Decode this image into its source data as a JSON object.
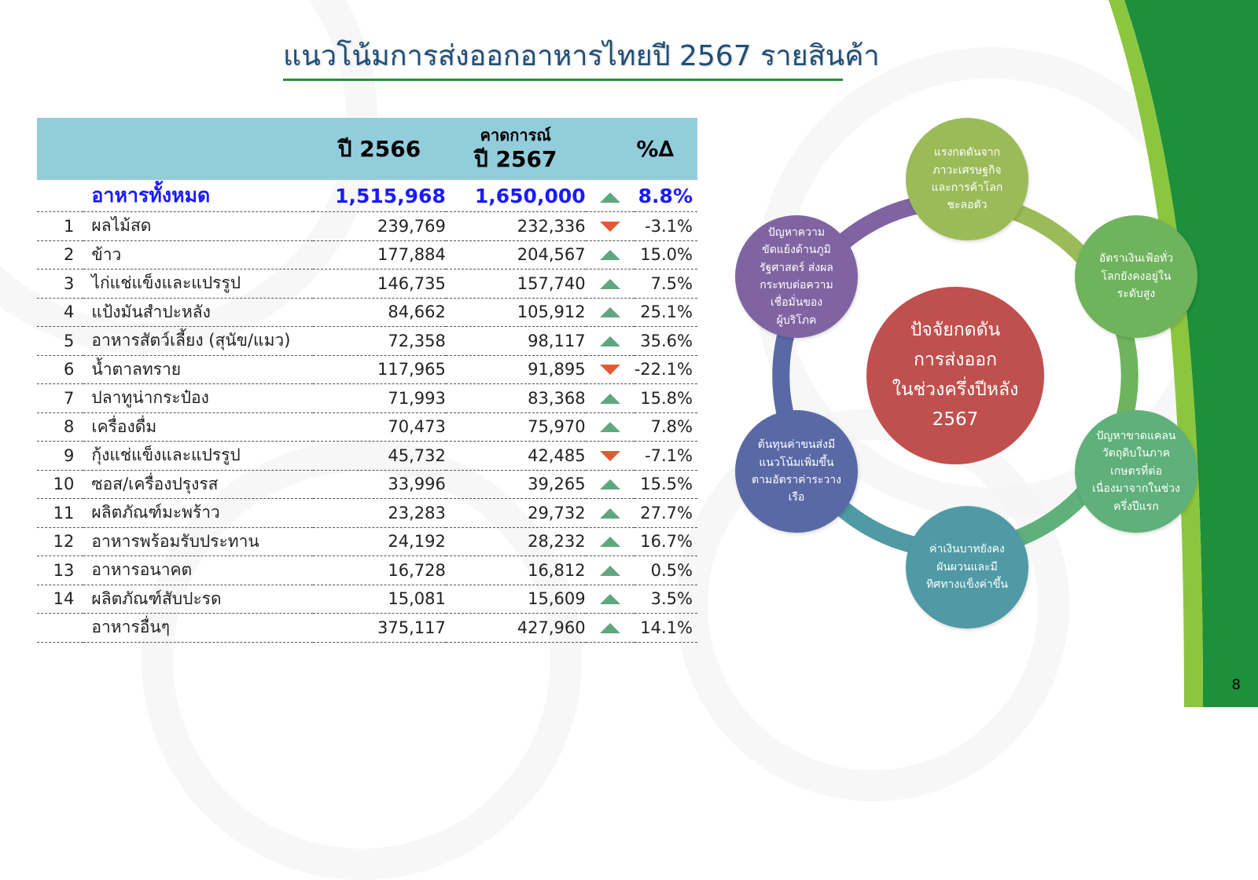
{
  "title": "แนวโน้มการส่งออกอาหารไทยปี 2567 รายสินค้า",
  "table": {
    "headers": {
      "col_2566": "ปี 2566",
      "col_2567_top": "คาดการณ์",
      "col_2567_bottom": "ปี 2567",
      "col_pct": "%∆"
    },
    "total": {
      "name": "อาหารทั้งหมด",
      "v2566": "1,515,968",
      "v2567": "1,650,000",
      "direction": "up",
      "pct": "8.8%"
    },
    "rows": [
      {
        "num": "1",
        "name": "ผลไม้สด",
        "v2566": "239,769",
        "v2567": "232,336",
        "direction": "down",
        "pct": "-3.1%"
      },
      {
        "num": "2",
        "name": "ข้าว",
        "v2566": "177,884",
        "v2567": "204,567",
        "direction": "up",
        "pct": "15.0%"
      },
      {
        "num": "3",
        "name": "ไก่แช่แข็งและแปรรูป",
        "v2566": "146,735",
        "v2567": "157,740",
        "direction": "up",
        "pct": "7.5%"
      },
      {
        "num": "4",
        "name": "แป้งมันสำปะหลัง",
        "v2566": "84,662",
        "v2567": "105,912",
        "direction": "up",
        "pct": "25.1%"
      },
      {
        "num": "5",
        "name": "อาหารสัตว์เลี้ยง (สุนัข/แมว)",
        "v2566": "72,358",
        "v2567": "98,117",
        "direction": "up",
        "pct": "35.6%"
      },
      {
        "num": "6",
        "name": "น้ำตาลทราย",
        "v2566": "117,965",
        "v2567": "91,895",
        "direction": "down",
        "pct": "-22.1%"
      },
      {
        "num": "7",
        "name": "ปลาทูน่ากระป๋อง",
        "v2566": "71,993",
        "v2567": "83,368",
        "direction": "up",
        "pct": "15.8%"
      },
      {
        "num": "8",
        "name": "เครื่องดื่ม",
        "v2566": "70,473",
        "v2567": "75,970",
        "direction": "up",
        "pct": "7.8%"
      },
      {
        "num": "9",
        "name": "กุ้งแช่แข็งและแปรรูป",
        "v2566": "45,732",
        "v2567": "42,485",
        "direction": "down",
        "pct": "-7.1%"
      },
      {
        "num": "10",
        "name": "ซอส/เครื่องปรุงรส",
        "v2566": "33,996",
        "v2567": "39,265",
        "direction": "up",
        "pct": "15.5%"
      },
      {
        "num": "11",
        "name": "ผลิตภัณฑ์มะพร้าว",
        "v2566": "23,283",
        "v2567": "29,732",
        "direction": "up",
        "pct": "27.7%"
      },
      {
        "num": "12",
        "name": "อาหารพร้อมรับประทาน",
        "v2566": "24,192",
        "v2567": "28,232",
        "direction": "up",
        "pct": "16.7%"
      },
      {
        "num": "13",
        "name": "อาหารอนาคต",
        "v2566": "16,728",
        "v2567": "16,812",
        "direction": "up",
        "pct": "0.5%"
      },
      {
        "num": "14",
        "name": "ผลิตภัณฑ์สับปะรด",
        "v2566": "15,081",
        "v2567": "15,609",
        "direction": "up",
        "pct": "3.5%"
      },
      {
        "num": "",
        "name": "อาหารอื่นๆ",
        "v2566": "375,117",
        "v2567": "427,960",
        "direction": "up",
        "pct": "14.1%"
      }
    ]
  },
  "diagram": {
    "center": {
      "lines": [
        "ปัจจัยกดดัน",
        "การส่งออก",
        "ในช่วงครึ่งปีหลัง",
        "2567"
      ],
      "color": "#c0504d"
    },
    "factors": [
      {
        "lines": [
          "แรงกดดันจาก",
          "ภาวะเศรษฐกิจ",
          "และการค้าโลก",
          "ชะลอตัว"
        ],
        "color": "#9bbb59"
      },
      {
        "lines": [
          "อัตราเงินเฟ้อทั่ว",
          "โลกยังคงอยู่ใน",
          "ระดับสูง"
        ],
        "color": "#6fb35d"
      },
      {
        "lines": [
          "ปัญหาขาดแคลน",
          "วัตถุดิบในภาค",
          "เกษตรที่ต่อ",
          "เนื่องมาจากในช่วง",
          "ครึ่งปีแรก"
        ],
        "color": "#5fb07a"
      },
      {
        "lines": [
          "ค่าเงินบาทยังคง",
          "ผันผวนและมี",
          "ทิศทางแข็งค่าขึ้น"
        ],
        "color": "#4f9aa5"
      },
      {
        "lines": [
          "ต้นทุนค่าขนส่งมี",
          "แนวโน้มเพิ่มขึ้น",
          "ตามอัตราค่าระวาง",
          "เรือ"
        ],
        "color": "#5969a6"
      },
      {
        "lines": [
          "ปัญหาความ",
          "ขัดแย้งด้านภูมิ",
          "รัฐศาสตร์ ส่งผล",
          "กระทบต่อความ",
          "เชื่อมั่นของ",
          "ผู้บริโภค"
        ],
        "color": "#8064a2"
      }
    ]
  },
  "page_number": "8",
  "colors": {
    "header_bg": "#92cddc",
    "total_text": "#1a1aff",
    "up": "#5fa77f",
    "down": "#e25a35",
    "band_dark": "#1e8f3b",
    "band_light": "#8cc63f"
  }
}
